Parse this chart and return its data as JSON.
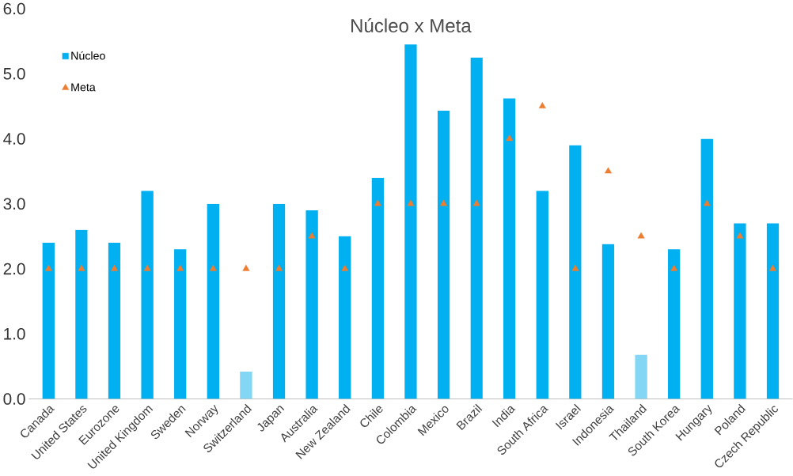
{
  "chart_data": {
    "type": "bar",
    "title": "Núcleo x Meta",
    "categories": [
      "Canada",
      "United States",
      "Eurozone",
      "United Kingdom",
      "Sweden",
      "Norway",
      "Switzerland",
      "Japan",
      "Australia",
      "New Zealand",
      "Chile",
      "Colombia",
      "Mexico",
      "Brazil",
      "India",
      "South Africa",
      "Israel",
      "Indonesia",
      "Thailand",
      "South Korea",
      "Hungary",
      "Poland",
      "Czech Republic"
    ],
    "series": [
      {
        "name": "Núcleo",
        "color": "#00b0f0",
        "colors": [
          "#00b0f0",
          "#00b0f0",
          "#00b0f0",
          "#00b0f0",
          "#00b0f0",
          "#00b0f0",
          "#83d7f5",
          "#00b0f0",
          "#00b0f0",
          "#00b0f0",
          "#00b0f0",
          "#00b0f0",
          "#00b0f0",
          "#00b0f0",
          "#00b0f0",
          "#00b0f0",
          "#00b0f0",
          "#00b0f0",
          "#83d7f5",
          "#00b0f0",
          "#00b0f0",
          "#00b0f0",
          "#00b0f0"
        ],
        "values": [
          2.4,
          2.6,
          2.4,
          3.2,
          2.3,
          3.0,
          0.42,
          3.0,
          2.9,
          2.5,
          3.4,
          5.45,
          4.43,
          5.25,
          4.62,
          3.2,
          3.9,
          2.38,
          0.68,
          2.3,
          4.0,
          2.7,
          2.7
        ]
      },
      {
        "name": "Meta",
        "type": "scatter",
        "color": "#ed7d31",
        "marker": "triangle",
        "values": [
          2.0,
          2.0,
          2.0,
          2.0,
          2.0,
          2.0,
          2.0,
          2.0,
          2.5,
          2.0,
          3.0,
          3.0,
          3.0,
          3.0,
          4.0,
          4.5,
          2.0,
          3.5,
          2.5,
          2.0,
          3.0,
          2.5,
          2.0
        ]
      }
    ],
    "ylim": [
      0,
      6
    ],
    "yticks": [
      {
        "value": 0,
        "label": "0.0"
      },
      {
        "value": 1,
        "label": "1.0"
      },
      {
        "value": 2,
        "label": "2.0"
      },
      {
        "value": 3,
        "label": "3.0"
      },
      {
        "value": 4,
        "label": "4.0"
      },
      {
        "value": 5,
        "label": "5.0"
      },
      {
        "value": 6,
        "label": "6.0"
      }
    ],
    "legend": "top left"
  }
}
